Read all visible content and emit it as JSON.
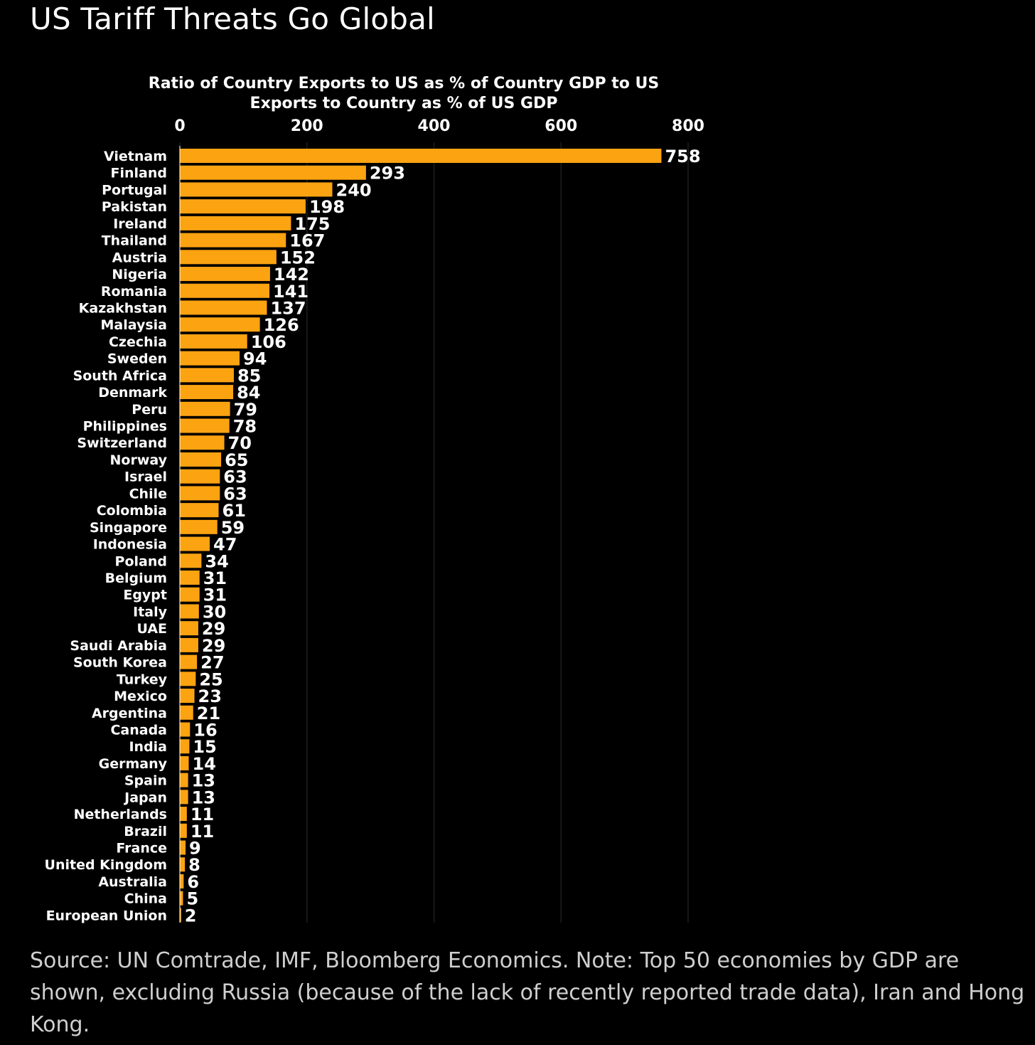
{
  "headline": "US Tariff Threats Go Global",
  "note": "Source: UN Comtrade, IMF, Bloomberg Economics. Note: Top 50 economies by GDP are shown, excluding Russia (because of the lack of recently reported trade data), Iran and Hong Kong.",
  "colors": {
    "bar": "#fca311",
    "background": "#000000",
    "text": "#ffffff",
    "note_text": "#cfcfcf",
    "grid": "#1e1e1e"
  },
  "chart_data": {
    "type": "bar",
    "orientation": "horizontal",
    "title_lines": [
      "Ratio of Country Exports to US as % of Country GDP to US",
      "Exports to Country as % of US GDP"
    ],
    "xlim": [
      0,
      800
    ],
    "xticks": [
      0,
      200,
      400,
      600,
      800
    ],
    "xtick_labels": [
      "0",
      "200",
      "400",
      "600",
      "800"
    ],
    "grid": true,
    "categories": [
      "Vietnam",
      "Finland",
      "Portugal",
      "Pakistan",
      "Ireland",
      "Thailand",
      "Austria",
      "Nigeria",
      "Romania",
      "Kazakhstan",
      "Malaysia",
      "Czechia",
      "Sweden",
      "South Africa",
      "Denmark",
      "Peru",
      "Philippines",
      "Switzerland",
      "Norway",
      "Israel",
      "Chile",
      "Colombia",
      "Singapore",
      "Indonesia",
      "Poland",
      "Belgium",
      "Egypt",
      "Italy",
      "UAE",
      "Saudi Arabia",
      "South Korea",
      "Turkey",
      "Mexico",
      "Argentina",
      "Canada",
      "India",
      "Germany",
      "Spain",
      "Japan",
      "Netherlands",
      "Brazil",
      "France",
      "United Kingdom",
      "Australia",
      "China",
      "European Union"
    ],
    "values": [
      758,
      293,
      240,
      198,
      175,
      167,
      152,
      142,
      141,
      137,
      126,
      106,
      94,
      85,
      84,
      79,
      78,
      70,
      65,
      63,
      63,
      61,
      59,
      47,
      34,
      31,
      31,
      30,
      29,
      29,
      27,
      25,
      23,
      21,
      16,
      15,
      14,
      13,
      13,
      11,
      11,
      9,
      8,
      6,
      5,
      2
    ]
  }
}
